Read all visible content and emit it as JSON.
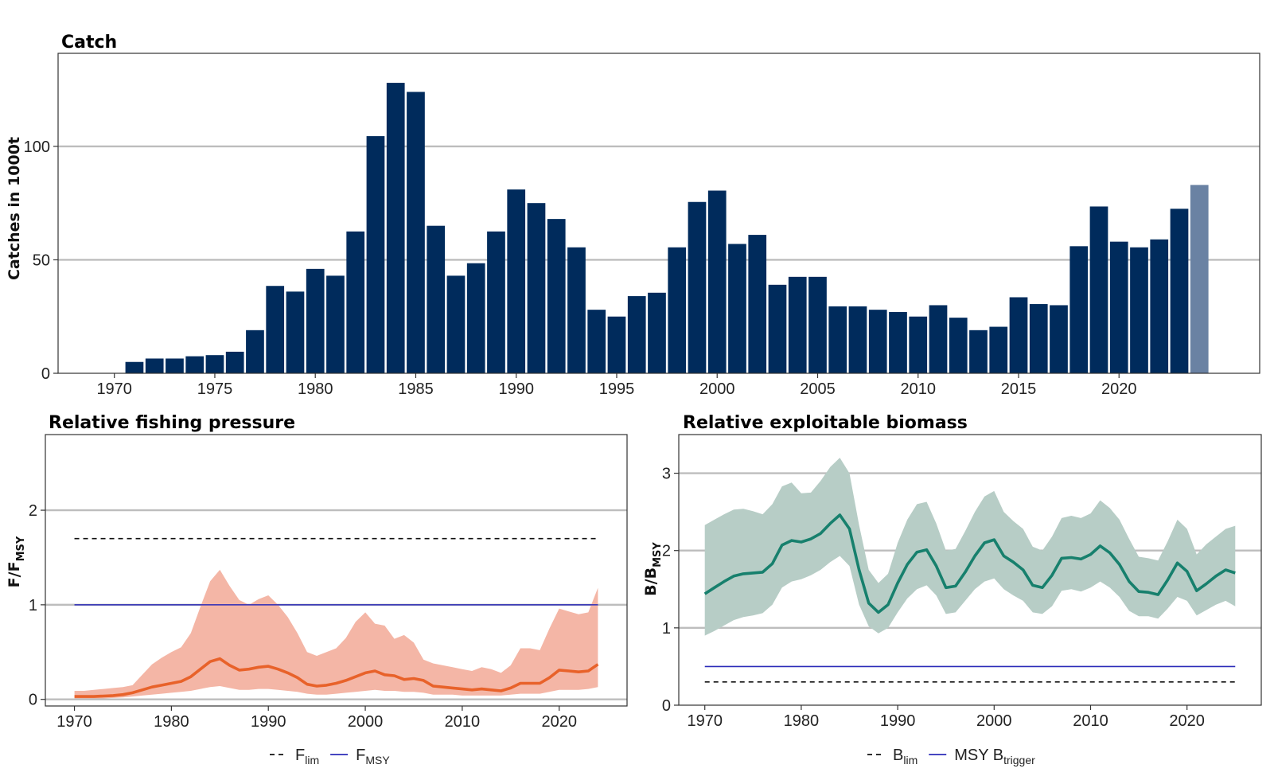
{
  "chart_data": [
    {
      "id": "catch",
      "type": "bar",
      "title": "Catch",
      "title_color": "#002b5c",
      "ylabel": "Catches in 1000t",
      "xlabel": "",
      "xlim": [
        1967.2,
        2027
      ],
      "ylim": [
        0,
        141
      ],
      "x_ticks": [
        1970,
        1975,
        1980,
        1985,
        1990,
        1995,
        2000,
        2005,
        2010,
        2015,
        2020
      ],
      "y_ticks": [
        0,
        50,
        100
      ],
      "grid_y": [
        50,
        100
      ],
      "bar_color": "#002b5c",
      "projected_color": "#6a82a3",
      "years": [
        1971,
        1972,
        1973,
        1974,
        1975,
        1976,
        1977,
        1978,
        1979,
        1980,
        1981,
        1982,
        1983,
        1984,
        1985,
        1986,
        1987,
        1988,
        1989,
        1990,
        1991,
        1992,
        1993,
        1994,
        1995,
        1996,
        1997,
        1998,
        1999,
        2000,
        2001,
        2002,
        2003,
        2004,
        2005,
        2006,
        2007,
        2008,
        2009,
        2010,
        2011,
        2012,
        2013,
        2014,
        2015,
        2016,
        2017,
        2018,
        2019,
        2020,
        2021,
        2022,
        2023,
        2024
      ],
      "values": [
        5,
        6.5,
        6.5,
        7.5,
        8,
        9.5,
        19,
        38.5,
        36,
        46,
        43,
        62.5,
        104.5,
        128,
        124,
        65,
        43,
        48.5,
        62.5,
        81,
        75,
        68,
        55.5,
        28,
        25,
        34,
        35.5,
        55.5,
        75.5,
        80.5,
        57,
        61,
        39,
        42.5,
        42.5,
        29.5,
        29.5,
        28,
        27,
        25,
        30,
        24.5,
        19,
        20.5,
        33.5,
        30.5,
        30,
        56,
        73.5,
        58,
        55.5,
        59,
        72.5,
        83
      ],
      "projected_years": [
        2024
      ]
    },
    {
      "id": "fishing",
      "type": "line",
      "title": "Relative fishing pressure",
      "title_color": "#e8622a",
      "ylabel_main": "F/F",
      "ylabel_sub": "MSY",
      "xlim": [
        1967,
        2027
      ],
      "ylim": [
        -0.07,
        2.8
      ],
      "x_ticks": [
        1970,
        1980,
        1990,
        2000,
        2010,
        2020
      ],
      "y_ticks": [
        0,
        1,
        2
      ],
      "grid_y": [
        0,
        1,
        2
      ],
      "line_color": "#e8622a",
      "band_color": "#f4b6a6",
      "x": [
        1970,
        1971,
        1972,
        1973,
        1974,
        1975,
        1976,
        1977,
        1978,
        1979,
        1980,
        1981,
        1982,
        1983,
        1984,
        1985,
        1986,
        1987,
        1988,
        1989,
        1990,
        1991,
        1992,
        1993,
        1994,
        1995,
        1996,
        1997,
        1998,
        1999,
        2000,
        2001,
        2002,
        2003,
        2004,
        2005,
        2006,
        2007,
        2008,
        2009,
        2010,
        2011,
        2012,
        2013,
        2014,
        2015,
        2016,
        2017,
        2018,
        2019,
        2020,
        2021,
        2022,
        2023,
        2024
      ],
      "y": [
        0.03,
        0.03,
        0.03,
        0.035,
        0.04,
        0.05,
        0.07,
        0.1,
        0.13,
        0.15,
        0.17,
        0.19,
        0.24,
        0.32,
        0.4,
        0.43,
        0.36,
        0.31,
        0.32,
        0.34,
        0.35,
        0.32,
        0.28,
        0.23,
        0.16,
        0.14,
        0.15,
        0.17,
        0.2,
        0.24,
        0.28,
        0.3,
        0.26,
        0.25,
        0.21,
        0.22,
        0.2,
        0.14,
        0.13,
        0.12,
        0.11,
        0.1,
        0.11,
        0.1,
        0.09,
        0.12,
        0.17,
        0.17,
        0.17,
        0.23,
        0.31,
        0.3,
        0.29,
        0.3,
        0.37
      ],
      "lower": [
        0.01,
        0.01,
        0.01,
        0.01,
        0.015,
        0.02,
        0.03,
        0.04,
        0.05,
        0.06,
        0.07,
        0.08,
        0.09,
        0.11,
        0.13,
        0.14,
        0.12,
        0.1,
        0.1,
        0.11,
        0.11,
        0.1,
        0.09,
        0.08,
        0.06,
        0.05,
        0.05,
        0.06,
        0.07,
        0.08,
        0.09,
        0.1,
        0.09,
        0.09,
        0.08,
        0.08,
        0.07,
        0.05,
        0.05,
        0.05,
        0.04,
        0.04,
        0.04,
        0.04,
        0.04,
        0.05,
        0.06,
        0.06,
        0.06,
        0.08,
        0.1,
        0.1,
        0.1,
        0.11,
        0.13
      ],
      "upper": [
        0.09,
        0.09,
        0.1,
        0.11,
        0.12,
        0.13,
        0.15,
        0.26,
        0.37,
        0.44,
        0.5,
        0.55,
        0.7,
        0.98,
        1.25,
        1.37,
        1.2,
        1.05,
        1.0,
        1.06,
        1.1,
        1.0,
        0.87,
        0.7,
        0.5,
        0.46,
        0.5,
        0.54,
        0.65,
        0.82,
        0.92,
        0.8,
        0.78,
        0.64,
        0.68,
        0.6,
        0.42,
        0.38,
        0.36,
        0.34,
        0.32,
        0.3,
        0.34,
        0.32,
        0.28,
        0.36,
        0.54,
        0.54,
        0.52,
        0.75,
        0.96,
        0.93,
        0.9,
        0.92,
        1.18
      ],
      "reference_lines": [
        {
          "name": "F",
          "sub": "lim",
          "value": 1.7,
          "style": "dashed",
          "color": "#111111"
        },
        {
          "name": "F",
          "sub": "MSY",
          "value": 1.0,
          "style": "solid",
          "color": "#2b2bb8"
        }
      ],
      "ref_xrange": [
        1970,
        2024
      ]
    },
    {
      "id": "biomass",
      "type": "line",
      "title": "Relative exploitable biomass",
      "title_color": "#17806d",
      "ylabel_main": "B/B",
      "ylabel_sub": "MSY",
      "xlim": [
        1967.3,
        2027.7
      ],
      "ylim": [
        0,
        3.5
      ],
      "x_ticks": [
        1970,
        1980,
        1990,
        2000,
        2010,
        2020
      ],
      "y_ticks": [
        0,
        1,
        2,
        3
      ],
      "grid_y": [
        1,
        2,
        3
      ],
      "line_color": "#17806d",
      "band_color": "#b7cdc6",
      "x": [
        1970,
        1971,
        1972,
        1973,
        1974,
        1975,
        1976,
        1977,
        1978,
        1979,
        1980,
        1981,
        1982,
        1983,
        1984,
        1985,
        1986,
        1987,
        1988,
        1989,
        1990,
        1991,
        1992,
        1993,
        1994,
        1995,
        1996,
        1997,
        1998,
        1999,
        2000,
        2001,
        2002,
        2003,
        2004,
        2005,
        2006,
        2007,
        2008,
        2009,
        2010,
        2011,
        2012,
        2013,
        2014,
        2015,
        2016,
        2017,
        2018,
        2019,
        2020,
        2021,
        2022,
        2023,
        2024,
        2025
      ],
      "y": [
        1.44,
        1.52,
        1.6,
        1.67,
        1.7,
        1.71,
        1.72,
        1.83,
        2.07,
        2.13,
        2.11,
        2.15,
        2.22,
        2.35,
        2.46,
        2.28,
        1.75,
        1.32,
        1.2,
        1.3,
        1.58,
        1.82,
        1.98,
        2.01,
        1.8,
        1.52,
        1.54,
        1.72,
        1.93,
        2.1,
        2.14,
        1.93,
        1.85,
        1.75,
        1.55,
        1.52,
        1.68,
        1.9,
        1.91,
        1.89,
        1.95,
        2.06,
        1.97,
        1.82,
        1.6,
        1.47,
        1.46,
        1.43,
        1.62,
        1.84,
        1.73,
        1.48,
        1.57,
        1.67,
        1.75,
        1.71
      ],
      "lower": [
        0.9,
        0.96,
        1.03,
        1.1,
        1.14,
        1.16,
        1.19,
        1.3,
        1.52,
        1.6,
        1.63,
        1.68,
        1.75,
        1.85,
        1.93,
        1.8,
        1.3,
        1.02,
        0.93,
        1.0,
        1.2,
        1.38,
        1.5,
        1.55,
        1.42,
        1.18,
        1.2,
        1.35,
        1.5,
        1.6,
        1.64,
        1.5,
        1.42,
        1.35,
        1.2,
        1.18,
        1.28,
        1.48,
        1.5,
        1.47,
        1.52,
        1.6,
        1.52,
        1.4,
        1.22,
        1.15,
        1.15,
        1.12,
        1.25,
        1.4,
        1.35,
        1.16,
        1.23,
        1.3,
        1.35,
        1.28
      ],
      "upper": [
        2.33,
        2.4,
        2.47,
        2.53,
        2.54,
        2.51,
        2.47,
        2.6,
        2.83,
        2.88,
        2.74,
        2.75,
        2.9,
        3.08,
        3.2,
        3.0,
        2.33,
        1.75,
        1.58,
        1.7,
        2.1,
        2.4,
        2.6,
        2.63,
        2.35,
        2.0,
        2.02,
        2.25,
        2.5,
        2.7,
        2.77,
        2.5,
        2.38,
        2.28,
        2.05,
        2.0,
        2.18,
        2.42,
        2.45,
        2.42,
        2.48,
        2.65,
        2.55,
        2.4,
        2.15,
        1.92,
        1.9,
        1.87,
        2.12,
        2.4,
        2.28,
        1.95,
        2.08,
        2.18,
        2.28,
        2.32
      ],
      "reference_lines": [
        {
          "name": "B",
          "sub": "lim",
          "value": 0.3,
          "style": "dashed",
          "color": "#111111"
        },
        {
          "name": "MSY B",
          "sub": "trigger",
          "value": 0.5,
          "style": "solid",
          "color": "#2b2bb8"
        }
      ],
      "ref_xrange": [
        1970,
        2025
      ]
    }
  ]
}
